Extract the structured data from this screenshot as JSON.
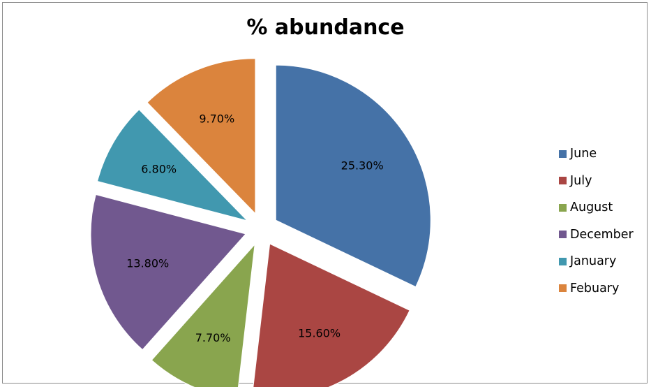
{
  "chart_data": {
    "type": "pie",
    "title": "% abundance",
    "legend_position": "right",
    "exploded": true,
    "slices": [
      {
        "name": "June",
        "value": 25.3,
        "label": "25.30%",
        "color": "#4572A7"
      },
      {
        "name": "July",
        "value": 15.6,
        "label": "15.60%",
        "color": "#AA4643"
      },
      {
        "name": "August",
        "value": 7.7,
        "label": "7.70%",
        "color": "#89A54E"
      },
      {
        "name": "December",
        "value": 13.8,
        "label": "13.80%",
        "color": "#71588F"
      },
      {
        "name": "January",
        "value": 6.8,
        "label": "6.80%",
        "color": "#4198AF"
      },
      {
        "name": "Febuary",
        "value": 9.7,
        "label": "9.70%",
        "color": "#DB843D"
      }
    ]
  }
}
